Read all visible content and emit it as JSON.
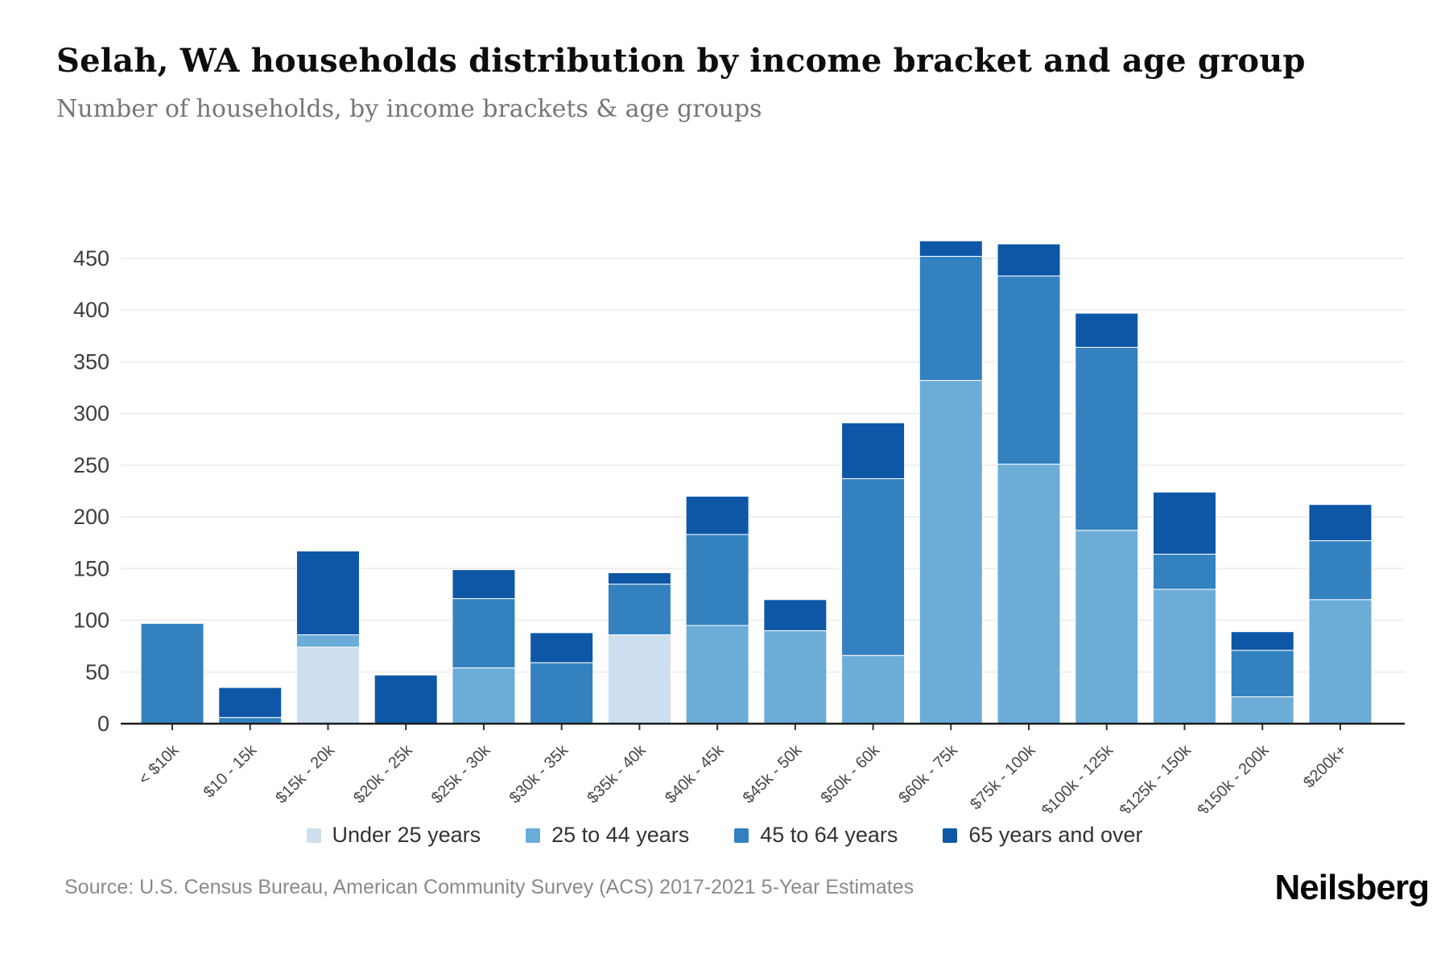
{
  "header": {
    "title": "Selah, WA households distribution by income bracket and age group",
    "subtitle": "Number of households, by income brackets & age groups"
  },
  "chart_data": {
    "type": "bar",
    "stacked": true,
    "title": "Selah, WA households distribution by income bracket and age group",
    "xlabel": "",
    "ylabel": "",
    "ylim": [
      0,
      450
    ],
    "yticks": [
      0,
      50,
      100,
      150,
      200,
      250,
      300,
      350,
      400,
      450
    ],
    "grid": true,
    "legend_position": "bottom",
    "categories": [
      "< $10k",
      "$10 - 15k",
      "$15k - 20k",
      "$20k - 25k",
      "$25k - 30k",
      "$30k - 35k",
      "$35k - 40k",
      "$40k - 45k",
      "$45k - 50k",
      "$50k - 60k",
      "$60k - 75k",
      "$75k - 100k",
      "$100k - 125k",
      "$125k - 150k",
      "$150k - 200k",
      "$200k+"
    ],
    "series": [
      {
        "name": "Under 25 years",
        "color": "#cddfee",
        "values": [
          0,
          0,
          74,
          0,
          0,
          0,
          86,
          0,
          0,
          0,
          0,
          0,
          0,
          0,
          0,
          0
        ]
      },
      {
        "name": "25 to 44 years",
        "color": "#6cadd8",
        "values": [
          0,
          0,
          12,
          0,
          54,
          0,
          0,
          95,
          90,
          66,
          332,
          251,
          187,
          130,
          26,
          120
        ]
      },
      {
        "name": "45 to 64 years",
        "color": "#3381bf",
        "values": [
          97,
          6,
          0,
          0,
          67,
          59,
          49,
          88,
          0,
          171,
          120,
          182,
          177,
          34,
          45,
          57
        ]
      },
      {
        "name": "65 years and over",
        "color": "#0d57a6",
        "values": [
          0,
          29,
          81,
          47,
          28,
          29,
          11,
          37,
          30,
          54,
          15,
          31,
          33,
          60,
          18,
          35
        ]
      }
    ]
  },
  "footer": {
    "source": "Source: U.S. Census Bureau, American Community Survey (ACS) 2017-2021 5-Year Estimates",
    "brand": "Neilsberg"
  }
}
